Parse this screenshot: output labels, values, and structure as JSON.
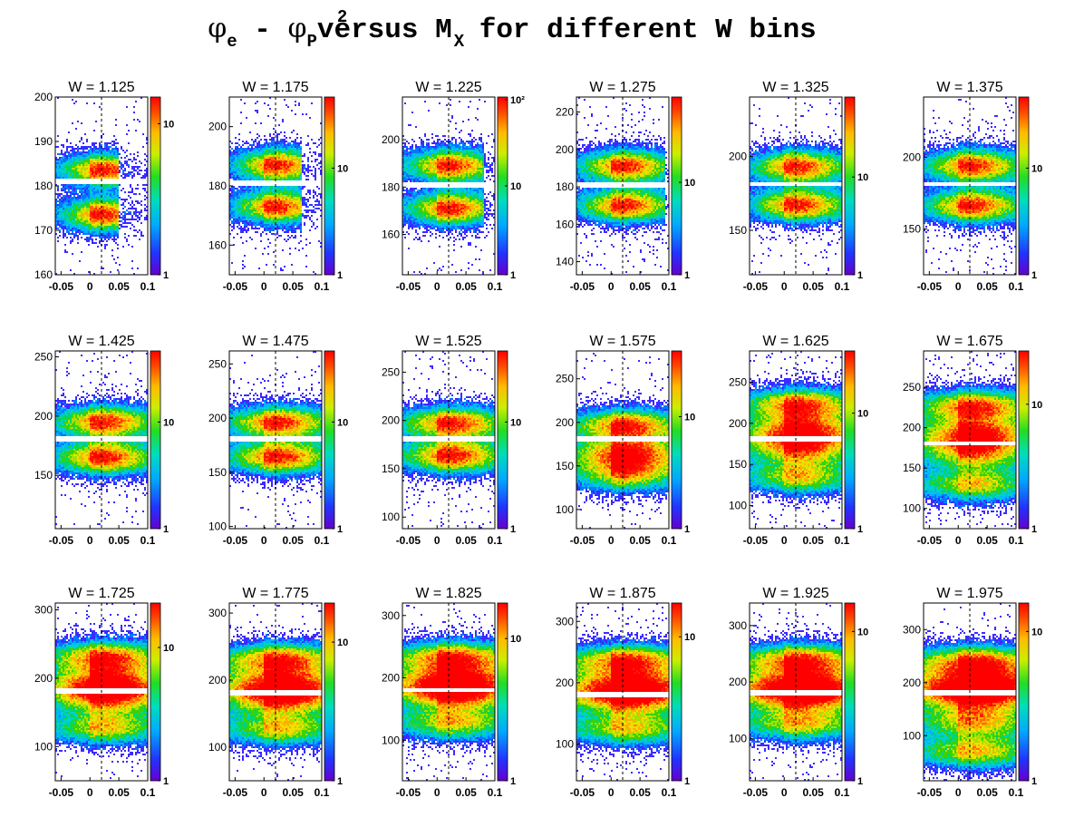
{
  "title": {
    "phi": "φ",
    "sub_e": "e",
    "dash": " - ",
    "sub_p": "P",
    "versus": " versus M",
    "sup_2": "2",
    "sub_x": "X",
    "rest": " for different W bins"
  },
  "chart_data": [
    {
      "type": "heatmap",
      "title": "W = 1.125",
      "xlim": [
        -0.06,
        0.1
      ],
      "ylim": [
        160,
        200
      ],
      "yticks": [
        160,
        170,
        180,
        190,
        200
      ],
      "xticks": [
        "-0.05",
        "0",
        "0.05",
        "0.1"
      ],
      "zticks": [
        "1",
        "10"
      ],
      "bands": [
        183.5,
        173.5
      ],
      "zmax_tick_frac": 0.85
    },
    {
      "type": "heatmap",
      "title": "W = 1.175",
      "xlim": [
        -0.06,
        0.1
      ],
      "ylim": [
        150,
        210
      ],
      "yticks": [
        160,
        180,
        200
      ],
      "xticks": [
        "-0.05",
        "0",
        "0.05",
        "0.1"
      ],
      "zticks": [
        "1",
        "10"
      ],
      "bands": [
        187,
        173
      ],
      "zmax_tick_frac": 0.6
    },
    {
      "type": "heatmap",
      "title": "W = 1.225",
      "xlim": [
        -0.06,
        0.1
      ],
      "ylim": [
        143,
        218
      ],
      "yticks": [
        160,
        180,
        200
      ],
      "xticks": [
        "-0.05",
        "0",
        "0.05",
        "0.1"
      ],
      "zticks": [
        "1",
        "10",
        "10²"
      ],
      "bands": [
        189,
        171
      ],
      "zmax_tick_frac": 0.5
    },
    {
      "type": "heatmap",
      "title": "W = 1.275",
      "xlim": [
        -0.06,
        0.1
      ],
      "ylim": [
        133,
        228
      ],
      "yticks": [
        140,
        160,
        180,
        200,
        220
      ],
      "xticks": [
        "-0.05",
        "0",
        "0.05",
        "0.1"
      ],
      "zticks": [
        "1",
        "10"
      ],
      "bands": [
        191,
        170
      ],
      "zmax_tick_frac": 0.52
    },
    {
      "type": "heatmap",
      "title": "W = 1.325",
      "xlim": [
        -0.06,
        0.1
      ],
      "ylim": [
        120,
        240
      ],
      "yticks": [
        150,
        200
      ],
      "xticks": [
        "-0.05",
        "0",
        "0.05",
        "0.1"
      ],
      "zticks": [
        "1",
        "10"
      ],
      "bands": [
        193,
        167
      ],
      "zmax_tick_frac": 0.55
    },
    {
      "type": "heatmap",
      "title": "W = 1.375",
      "xlim": [
        -0.06,
        0.1
      ],
      "ylim": [
        118,
        242
      ],
      "yticks": [
        150,
        200
      ],
      "xticks": [
        "-0.05",
        "0",
        "0.05",
        "0.1"
      ],
      "zticks": [
        "1",
        "10"
      ],
      "bands": [
        194,
        166
      ],
      "zmax_tick_frac": 0.6
    },
    {
      "type": "heatmap",
      "title": "W = 1.425",
      "xlim": [
        -0.06,
        0.1
      ],
      "ylim": [
        105,
        255
      ],
      "yticks": [
        150,
        200,
        250
      ],
      "xticks": [
        "-0.05",
        "0",
        "0.05",
        "0.1"
      ],
      "zticks": [
        "1",
        "10"
      ],
      "bands": [
        195,
        165
      ],
      "zmax_tick_frac": 0.6
    },
    {
      "type": "heatmap",
      "title": "W = 1.475",
      "xlim": [
        -0.06,
        0.1
      ],
      "ylim": [
        98,
        262
      ],
      "yticks": [
        100,
        150,
        200,
        250
      ],
      "xticks": [
        "-0.05",
        "0",
        "0.05",
        "0.1"
      ],
      "zticks": [
        "1",
        "10"
      ],
      "bands": [
        196,
        164
      ],
      "zmax_tick_frac": 0.6
    },
    {
      "type": "heatmap",
      "title": "W = 1.525",
      "xlim": [
        -0.06,
        0.1
      ],
      "ylim": [
        88,
        272
      ],
      "yticks": [
        100,
        150,
        200,
        250
      ],
      "xticks": [
        "-0.05",
        "0",
        "0.05",
        "0.1"
      ],
      "zticks": [
        "1",
        "10"
      ],
      "bands": [
        197,
        163
      ],
      "zmax_tick_frac": 0.6
    },
    {
      "type": "heatmap",
      "title": "W = 1.575",
      "xlim": [
        -0.06,
        0.1
      ],
      "ylim": [
        78,
        282
      ],
      "yticks": [
        100,
        150,
        200,
        250
      ],
      "xticks": [
        "-0.05",
        "0",
        "0.05",
        "0.1"
      ],
      "zticks": [
        "1",
        "10"
      ],
      "bands": [
        196,
        164,
        140
      ],
      "zmax_tick_frac": 0.63
    },
    {
      "type": "heatmap",
      "title": "W = 1.625",
      "xlim": [
        -0.06,
        0.1
      ],
      "ylim": [
        72,
        288
      ],
      "yticks": [
        100,
        150,
        200,
        250
      ],
      "xticks": [
        "-0.05",
        "0",
        "0.05",
        "0.1"
      ],
      "zticks": [
        "1",
        "10"
      ],
      "bands": [
        222,
        190,
        168,
        135
      ],
      "zmax_tick_frac": 0.65
    },
    {
      "type": "heatmap",
      "title": "W = 1.675",
      "xlim": [
        -0.06,
        0.1
      ],
      "ylim": [
        75,
        295
      ],
      "yticks": [
        100,
        150,
        200,
        250
      ],
      "xticks": [
        "-0.05",
        "0",
        "0.05",
        "0.1"
      ],
      "zticks": [
        "1",
        "10"
      ],
      "bands": [
        226,
        192,
        168,
        130
      ],
      "zmax_tick_frac": 0.7
    },
    {
      "type": "heatmap",
      "title": "W = 1.725",
      "xlim": [
        -0.06,
        0.1
      ],
      "ylim": [
        50,
        310
      ],
      "yticks": [
        100,
        200,
        300
      ],
      "xticks": [
        "-0.05",
        "0",
        "0.05",
        "0.1"
      ],
      "zticks": [
        "1",
        "10"
      ],
      "bands": [
        230,
        192,
        170,
        128
      ],
      "zmax_tick_frac": 0.75
    },
    {
      "type": "heatmap",
      "title": "W = 1.775",
      "xlim": [
        -0.06,
        0.1
      ],
      "ylim": [
        50,
        315
      ],
      "yticks": [
        100,
        200,
        300
      ],
      "xticks": [
        "-0.05",
        "0",
        "0.05",
        "0.1"
      ],
      "zticks": [
        "1",
        "10"
      ],
      "bands": [
        230,
        192,
        170,
        128
      ],
      "zmax_tick_frac": 0.78
    },
    {
      "type": "heatmap",
      "title": "W = 1.825",
      "xlim": [
        -0.06,
        0.1
      ],
      "ylim": [
        35,
        320
      ],
      "yticks": [
        100,
        200,
        300
      ],
      "xticks": [
        "-0.05",
        "0",
        "0.05",
        "0.1"
      ],
      "zticks": [
        "1",
        "10"
      ],
      "bands": [
        232,
        193,
        172,
        128
      ],
      "zmax_tick_frac": 0.8
    },
    {
      "type": "heatmap",
      "title": "W = 1.875",
      "xlim": [
        -0.06,
        0.1
      ],
      "ylim": [
        40,
        330
      ],
      "yticks": [
        100,
        200,
        300
      ],
      "xticks": [
        "-0.05",
        "0",
        "0.05",
        "0.1"
      ],
      "zticks": [
        "1",
        "10"
      ],
      "bands": [
        235,
        194,
        172,
        126
      ],
      "zmax_tick_frac": 0.81
    },
    {
      "type": "heatmap",
      "title": "W = 1.925",
      "xlim": [
        -0.06,
        0.1
      ],
      "ylim": [
        25,
        340
      ],
      "yticks": [
        100,
        200,
        300
      ],
      "xticks": [
        "-0.05",
        "0",
        "0.05",
        "0.1"
      ],
      "zticks": [
        "1",
        "10"
      ],
      "bands": [
        238,
        194,
        172,
        126
      ],
      "zmax_tick_frac": 0.84
    },
    {
      "type": "heatmap",
      "title": "W = 1.975",
      "xlim": [
        -0.06,
        0.1
      ],
      "ylim": [
        15,
        350
      ],
      "yticks": [
        100,
        200,
        300
      ],
      "xticks": [
        "-0.05",
        "0",
        "0.05",
        "0.1"
      ],
      "zticks": [
        "1",
        "10"
      ],
      "bands": [
        238,
        196,
        172,
        126,
        70
      ],
      "zmax_tick_frac": 0.84
    }
  ]
}
